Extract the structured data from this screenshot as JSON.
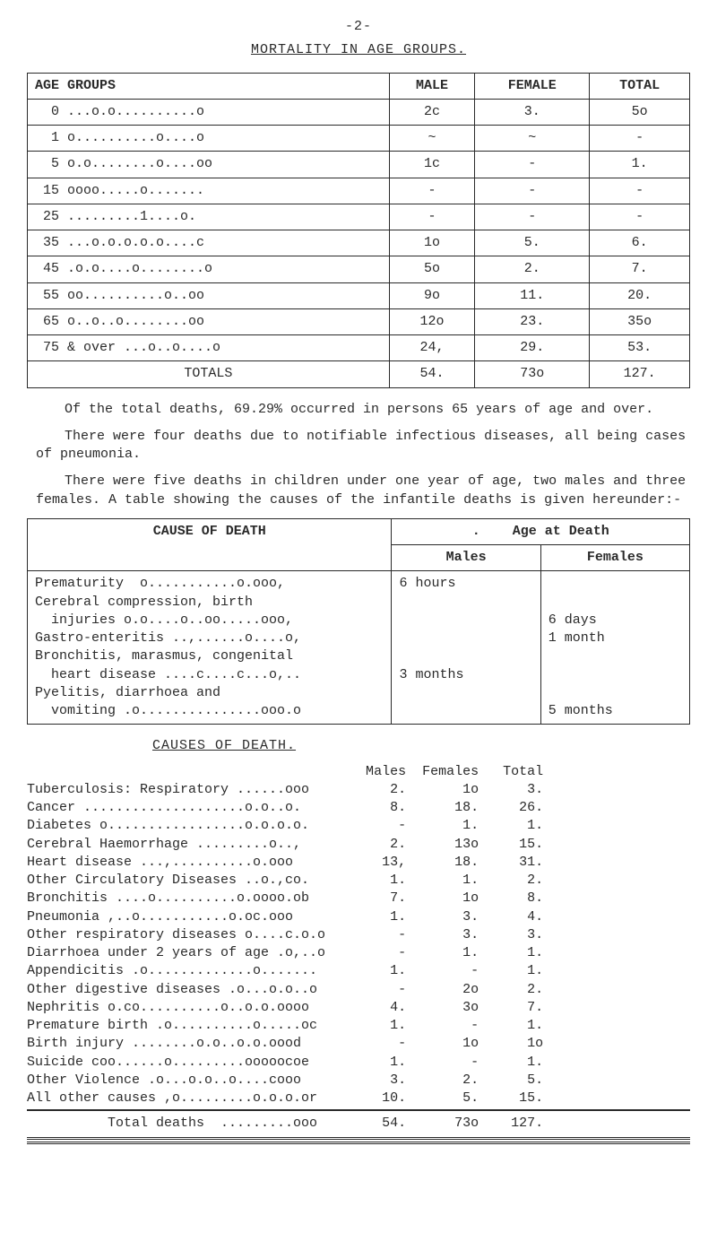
{
  "page_number_text": "-2-",
  "title": "MORTALITY IN AGE GROUPS.",
  "table1": {
    "headers": [
      "AGE GROUPS",
      "MALE",
      "FEMALE",
      "TOTAL"
    ],
    "rows": [
      {
        "label": "  0 ...o.o..........o",
        "male": "2c",
        "female": "3.",
        "total": "5o"
      },
      {
        "label": "  1 o..........o....o",
        "male": "~",
        "female": "~",
        "total": "-"
      },
      {
        "label": "  5 o.o........o....oo",
        "male": "1c",
        "female": "-",
        "total": "1."
      },
      {
        "label": " 15 oooo.....o.......",
        "male": "-",
        "female": "-",
        "total": "-"
      },
      {
        "label": " 25 .........1....o.",
        "male": "-",
        "female": "-",
        "total": "-"
      },
      {
        "label": " 35 ...o.o.o.o.o....c",
        "male": "1o",
        "female": "5.",
        "total": "6."
      },
      {
        "label": " 45 .o.o....o........o",
        "male": "5o",
        "female": "2.",
        "total": "7."
      },
      {
        "label": " 55 oo..........o..oo",
        "male": "9o",
        "female": "11.",
        "total": "20."
      },
      {
        "label": " 65 o..o..o........oo",
        "male": "12o",
        "female": "23.",
        "total": "35o"
      },
      {
        "label": " 75 & over ...o..o....o",
        "male": "24,",
        "female": "29.",
        "total": "53."
      }
    ],
    "totals": {
      "label": "TOTALS",
      "male": "54.",
      "female": "73o",
      "total": "127."
    }
  },
  "para1": "Of the total deaths, 69.29% occurred in persons 65 years of age and over.",
  "para2": "There were four deaths due to notifiable infectious diseases, all being cases of pneumonia.",
  "para3": "There were five deaths in children under one year of age, two males and three females.  A table showing the causes of the infantile deaths is given hereunder:-",
  "table2": {
    "header_cause": "CAUSE OF DEATH",
    "header_age": "Age at Death",
    "sub_males": "Males",
    "sub_females": "Females",
    "cause_block": "Prematurity  o...........o.ooo,\nCerebral compression, birth\n  injuries o.o....o..oo.....ooo,\nGastro-enteritis ..,......o....o,\nBronchitis, marasmus, congenital\n  heart disease ....c....c...o,..\nPyelitis, diarrhoea and\n  vomiting .o...............ooo.o",
    "males_block": "6 hours\n\n\n\n\n3 months\n\n",
    "females_block": "\n\n6 days\n1 month\n\n\n\n5 months"
  },
  "causes_title": "CAUSES OF DEATH.",
  "causes_headers": {
    "c1": "Males",
    "c2": "Females",
    "c3": "Total"
  },
  "causes_rows": [
    {
      "label": "Tuberculosis: Respiratory ......ooo",
      "m": "2.",
      "f": "1o",
      "t": "3."
    },
    {
      "label": "Cancer ....................o.o..o.",
      "m": "8.",
      "f": "18.",
      "t": "26."
    },
    {
      "label": "Diabetes o.................o.o.o.o.",
      "m": "-",
      "f": "1.",
      "t": "1."
    },
    {
      "label": "Cerebral Haemorrhage .........o..,",
      "m": "2.",
      "f": "13o",
      "t": "15."
    },
    {
      "label": "Heart disease ...,..........o.ooo",
      "m": "13,",
      "f": "18.",
      "t": "31."
    },
    {
      "label": "Other Circulatory Diseases ..o.,co.",
      "m": "1.",
      "f": "1.",
      "t": "2."
    },
    {
      "label": "Bronchitis ....o..........o.oooo.ob",
      "m": "7.",
      "f": "1o",
      "t": "8."
    },
    {
      "label": "Pneumonia ,..o...........o.oc.ooo",
      "m": "1.",
      "f": "3.",
      "t": "4."
    },
    {
      "label": "Other respiratory diseases o....c.o.o",
      "m": "-",
      "f": "3.",
      "t": "3."
    },
    {
      "label": "Diarrhoea under 2 years of age .o,..o",
      "m": "-",
      "f": "1.",
      "t": "1."
    },
    {
      "label": "Appendicitis .o.............o.......",
      "m": "1.",
      "f": "-",
      "t": "1."
    },
    {
      "label": "Other digestive diseases .o...o.o..o",
      "m": "-",
      "f": "2o",
      "t": "2."
    },
    {
      "label": "Nephritis o.co..........o..o.o.oooo",
      "m": "4.",
      "f": "3o",
      "t": "7."
    },
    {
      "label": "Premature birth .o..........o.....oc",
      "m": "1.",
      "f": "-",
      "t": "1."
    },
    {
      "label": "Birth injury ........o.o..o.o.oood",
      "m": "-",
      "f": "1o",
      "t": "1o"
    },
    {
      "label": "Suicide coo......o.........ooooocoe",
      "m": "1.",
      "f": "-",
      "t": "1."
    },
    {
      "label": "Other Violence .o...o.o..o....cooo",
      "m": "3.",
      "f": "2.",
      "t": "5."
    },
    {
      "label": "All other causes ,o.........o.o.o.or",
      "m": "10.",
      "f": "5.",
      "t": "15."
    }
  ],
  "causes_total": {
    "label": "Total deaths  .........ooo",
    "m": "54.",
    "f": "73o",
    "t": "127."
  },
  "layout": {
    "col_label_width": 40,
    "col_m": 7,
    "col_f": 9,
    "col_t": 8
  }
}
